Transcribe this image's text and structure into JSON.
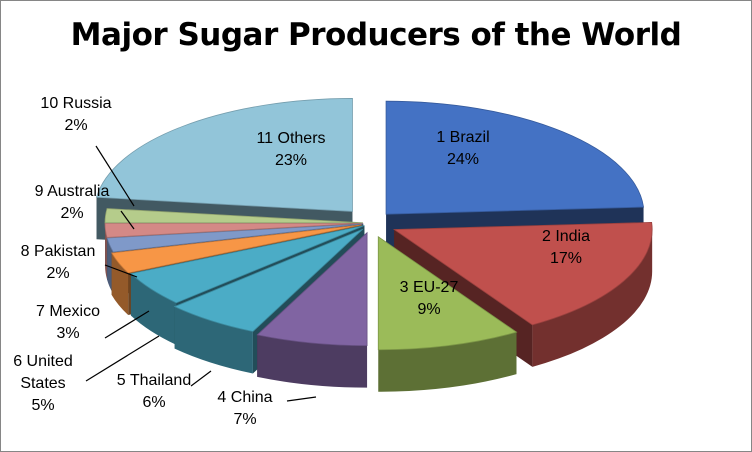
{
  "chart_data": {
    "type": "pie",
    "title": "Major Sugar Producers of the World",
    "series": [
      {
        "categories": [
          "1 Brazil",
          "2 India",
          "3 EU-27",
          "4 China",
          "5 Thailand",
          "6 United States",
          "7 Mexico",
          "8 Pakistan",
          "9 Australia",
          "10 Russia",
          "11 Others"
        ],
        "values": [
          24,
          17,
          9,
          7,
          6,
          5,
          3,
          2,
          2,
          2,
          23
        ],
        "labels": [
          "24%",
          "17%",
          "9%",
          "7%",
          "6%",
          "5%",
          "3%",
          "2%",
          "2%",
          "2%",
          "23%"
        ]
      }
    ],
    "style": "3d-exploded-pie",
    "legend": "none",
    "colors": [
      "#4472c4",
      "#c0504d",
      "#9bbb59",
      "#8064a2",
      "#4bacc6",
      "#4bacc6",
      "#f79646",
      "#7f99c9",
      "#d48986",
      "#b5cc8b",
      "#92c5d9"
    ]
  }
}
